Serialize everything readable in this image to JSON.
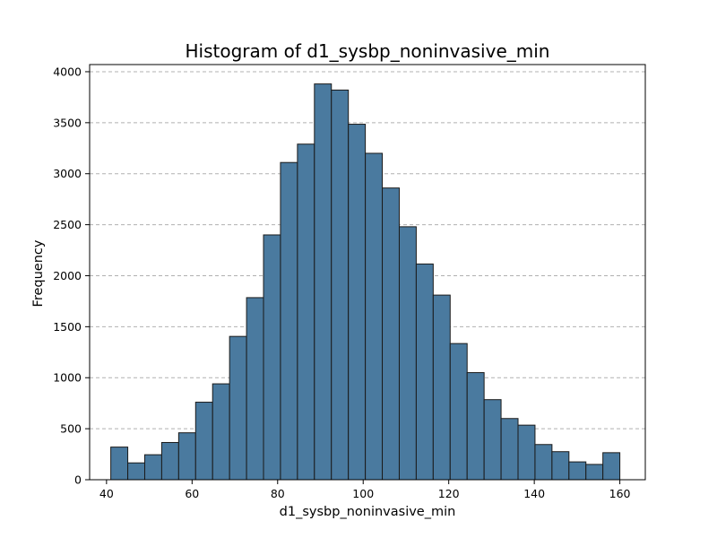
{
  "chart_data": {
    "type": "bar",
    "title": "Histogram of d1_sysbp_noninvasive_min",
    "xlabel": "d1_sysbp_noninvasive_min",
    "ylabel": "Frequency",
    "xlim": [
      36.05,
      165.95
    ],
    "ylim": [
      0,
      4070
    ],
    "x_ticks": [
      40,
      60,
      80,
      100,
      120,
      140,
      160
    ],
    "y_ticks": [
      0,
      500,
      1000,
      1500,
      2000,
      2500,
      3000,
      3500,
      4000
    ],
    "grid": "y-dashed",
    "bar_color": "#4a7a9f",
    "edge_color": "#1a1a1a",
    "bin_start": 41,
    "bin_end": 160,
    "bin_count": 30,
    "values": [
      320,
      165,
      245,
      365,
      460,
      760,
      940,
      1405,
      1785,
      2400,
      3110,
      3290,
      3880,
      3820,
      3485,
      3200,
      2860,
      2480,
      2115,
      1810,
      1335,
      1050,
      785,
      600,
      535,
      345,
      275,
      175,
      150,
      265
    ]
  }
}
